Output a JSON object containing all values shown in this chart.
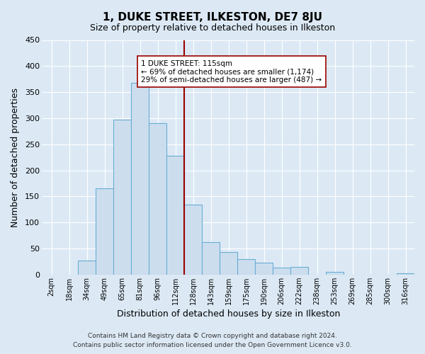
{
  "title": "1, DUKE STREET, ILKESTON, DE7 8JU",
  "subtitle": "Size of property relative to detached houses in Ilkeston",
  "xlabel": "Distribution of detached houses by size in Ilkeston",
  "ylabel": "Number of detached properties",
  "footer_line1": "Contains HM Land Registry data © Crown copyright and database right 2024.",
  "footer_line2": "Contains public sector information licensed under the Open Government Licence v3.0.",
  "bar_labels": [
    "2sqm",
    "18sqm",
    "34sqm",
    "49sqm",
    "65sqm",
    "81sqm",
    "96sqm",
    "112sqm",
    "128sqm",
    "143sqm",
    "159sqm",
    "175sqm",
    "190sqm",
    "206sqm",
    "222sqm",
    "238sqm",
    "253sqm",
    "269sqm",
    "285sqm",
    "300sqm",
    "316sqm"
  ],
  "bar_values": [
    0,
    0,
    27,
    165,
    297,
    368,
    291,
    228,
    134,
    62,
    43,
    29,
    23,
    13,
    15,
    0,
    5,
    0,
    0,
    0,
    2
  ],
  "bar_color": "#ccdeed",
  "bar_edge_color": "#6aadd5",
  "ylim": [
    0,
    450
  ],
  "yticks": [
    0,
    50,
    100,
    150,
    200,
    250,
    300,
    350,
    400,
    450
  ],
  "vline_x": 7.5,
  "vline_color": "#990000",
  "annotation_title": "1 DUKE STREET: 115sqm",
  "annotation_line1": "← 69% of detached houses are smaller (1,174)",
  "annotation_line2": "29% of semi-detached houses are larger (487) →",
  "bg_color": "#dce9f5",
  "plot_bg_color": "#dce9f5",
  "grid_color": "#ffffff"
}
